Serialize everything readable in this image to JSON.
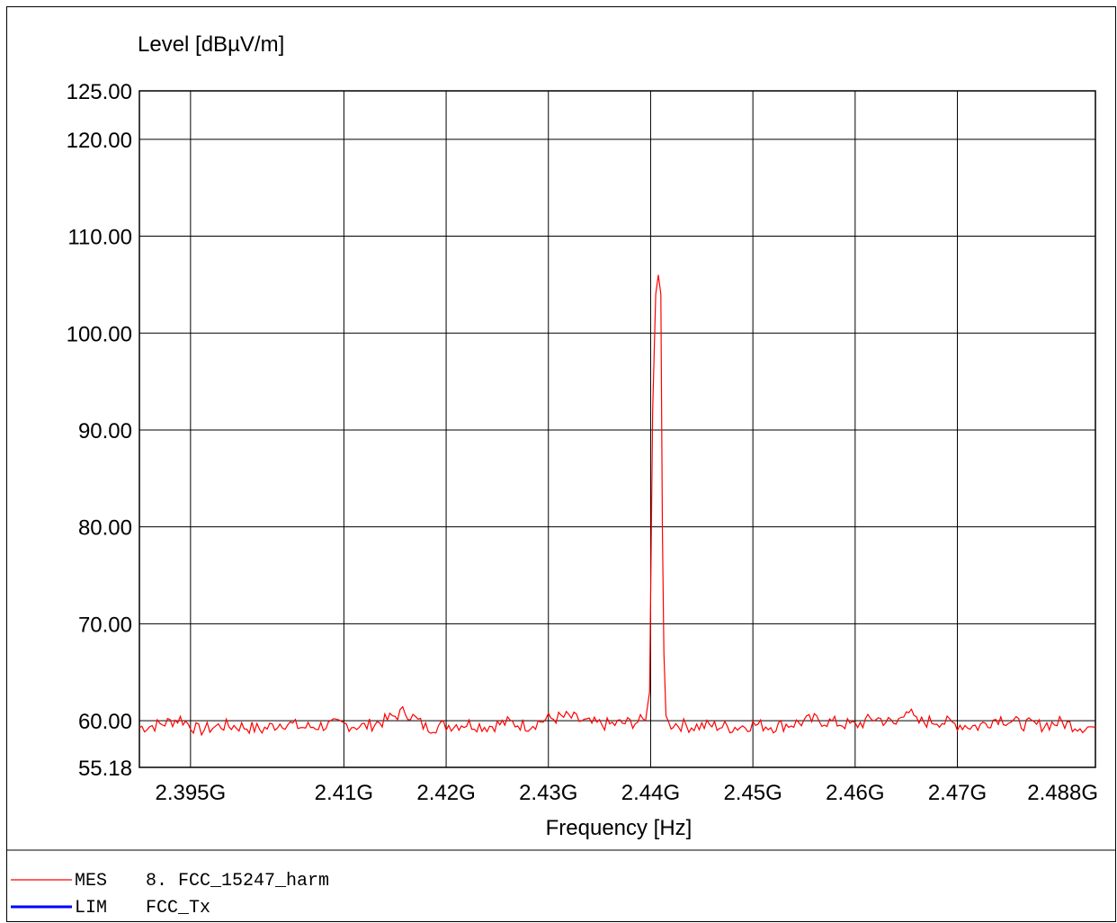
{
  "chart_data": {
    "type": "line",
    "ylabel": "Level [dBµV/m]",
    "xlabel": "Frequency [Hz]",
    "ylim": [
      55.18,
      125.0
    ],
    "xlim": [
      2390000000,
      2483500000
    ],
    "y_ticks": [
      {
        "value": 125.0,
        "label": "125.00"
      },
      {
        "value": 120.0,
        "label": "120.00"
      },
      {
        "value": 110.0,
        "label": "110.00"
      },
      {
        "value": 100.0,
        "label": "100.00"
      },
      {
        "value": 90.0,
        "label": "90.00"
      },
      {
        "value": 80.0,
        "label": "80.00"
      },
      {
        "value": 70.0,
        "label": "70.00"
      },
      {
        "value": 60.0,
        "label": "60.00"
      },
      {
        "value": 55.18,
        "label": "55.18"
      }
    ],
    "x_ticks": [
      {
        "value": 2395000000,
        "label": "2.395G"
      },
      {
        "value": 2410000000,
        "label": "2.41G"
      },
      {
        "value": 2420000000,
        "label": "2.42G"
      },
      {
        "value": 2430000000,
        "label": "2.43G"
      },
      {
        "value": 2440000000,
        "label": "2.44G"
      },
      {
        "value": 2450000000,
        "label": "2.45G"
      },
      {
        "value": 2460000000,
        "label": "2.46G"
      },
      {
        "value": 2470000000,
        "label": "2.47G"
      },
      {
        "value": 2488000000,
        "label": "2.488G"
      }
    ],
    "grid": true,
    "series": [
      {
        "name": "MES",
        "color": "#ff0000",
        "x": [
          2390000000,
          2392000000,
          2394000000,
          2395800000,
          2398000000,
          2400000000,
          2402000000,
          2404000000,
          2406000000,
          2408000000,
          2410000000,
          2412000000,
          2414000000,
          2416000000,
          2418000000,
          2420000000,
          2422000000,
          2424000000,
          2426000000,
          2428000000,
          2430000000,
          2432000000,
          2434000000,
          2436000000,
          2438000000,
          2439500000,
          2439900000,
          2440200000,
          2440500000,
          2440750000,
          2441000000,
          2441150000,
          2441300000,
          2441500000,
          2441800000,
          2442200000,
          2444000000,
          2446000000,
          2448000000,
          2450000000,
          2452000000,
          2454000000,
          2456000000,
          2458000000,
          2460000000,
          2462000000,
          2464000000,
          2465000000,
          2466000000,
          2468000000,
          2470000000,
          2472000000,
          2474000000,
          2476000000,
          2478000000,
          2480000000,
          2482000000,
          2483500000
        ],
        "y": [
          59.3,
          59.6,
          60.2,
          59.0,
          59.5,
          59.4,
          59.1,
          59.8,
          59.3,
          59.5,
          59.6,
          59.4,
          60.0,
          61.0,
          59.3,
          59.5,
          59.7,
          59.4,
          59.8,
          59.5,
          60.2,
          60.4,
          59.7,
          59.6,
          59.8,
          60.0,
          63.0,
          92.0,
          104.0,
          106.0,
          104.0,
          80.0,
          67.0,
          61.0,
          59.5,
          59.7,
          59.4,
          59.5,
          59.3,
          59.6,
          59.4,
          59.7,
          60.1,
          59.8,
          59.5,
          60.3,
          59.6,
          61.4,
          59.8,
          60.0,
          59.6,
          59.4,
          60.3,
          59.7,
          59.5,
          59.8,
          59.4,
          59.3
        ]
      },
      {
        "name": "LIM",
        "color": "#0000ff",
        "x": [],
        "y": []
      }
    ]
  },
  "legend": [
    {
      "code": "MES",
      "text": "8. FCC_15247_harm",
      "color": "#ff0000"
    },
    {
      "code": "LIM",
      "text": "FCC_Tx",
      "color": "#0000ff"
    }
  ]
}
